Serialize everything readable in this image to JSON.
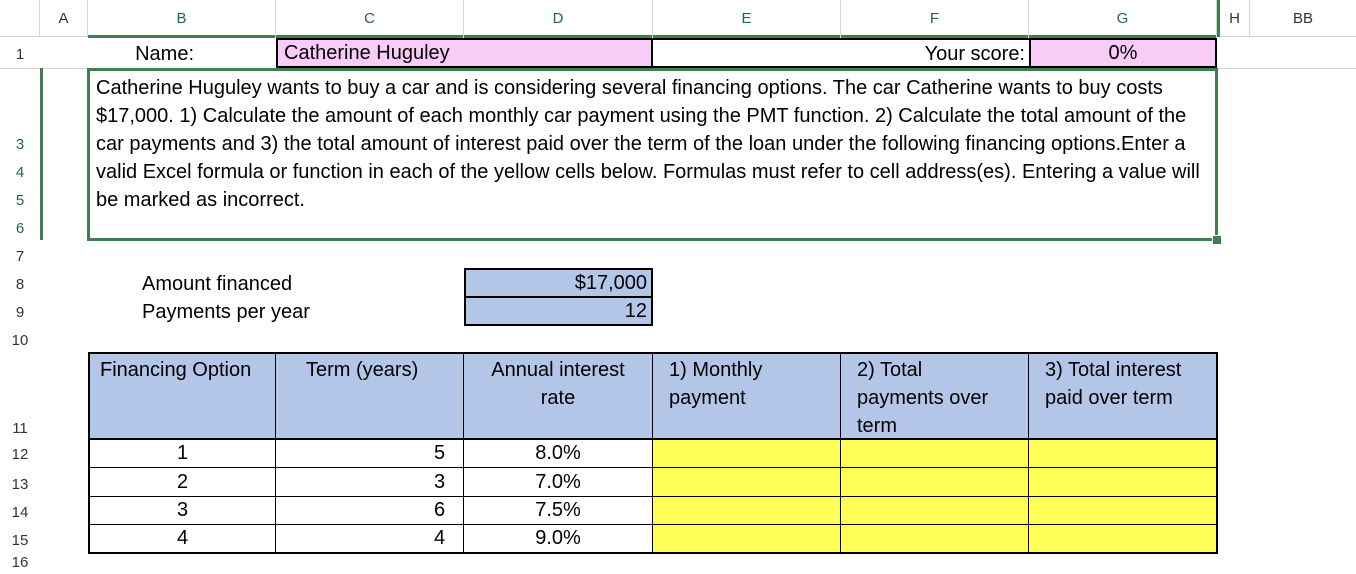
{
  "columns": [
    "A",
    "B",
    "C",
    "D",
    "E",
    "F",
    "G",
    "H",
    "BB"
  ],
  "rows": {
    "r1": "1",
    "r3": "3",
    "r4": "4",
    "r5": "5",
    "r6": "6",
    "r7": "7",
    "r8": "8",
    "r9": "9",
    "r10": "10",
    "r11": "11",
    "r12": "12",
    "r13": "13",
    "r14": "14",
    "r15": "15",
    "r16": "16"
  },
  "sheet": {
    "name_label": "Name:",
    "name_value": "Catherine Huguley",
    "score_label": "Your score:",
    "score_value": "0%",
    "instructions": "Catherine Huguley wants to buy a car and is considering several financing options.  The car Catherine wants to buy costs $17,000.  1)  Calculate the amount of each monthly car payment using the PMT function.  2)  Calculate the total amount of the car payments and 3) the total amount of interest paid over the term of the loan under the following financing options.Enter a valid Excel formula or function in each of the yellow cells below.  Formulas must refer to cell address(es).  Entering a value will be marked as incorrect.",
    "amount_label": "Amount financed",
    "amount_value": "$17,000",
    "payments_label": "Payments per year",
    "payments_value": "12"
  },
  "table": {
    "headers": {
      "option": "Financing Option",
      "term": "Term (years)",
      "rate": "Annual interest rate",
      "monthly": "1)  Monthly payment",
      "total": "2)  Total payments over term",
      "interest": "3)  Total interest paid over term"
    },
    "rows": [
      {
        "option": "1",
        "term": "5",
        "rate": "8.0%"
      },
      {
        "option": "2",
        "term": "3",
        "rate": "7.0%"
      },
      {
        "option": "3",
        "term": "6",
        "rate": "7.5%"
      },
      {
        "option": "4",
        "term": "4",
        "rate": "9.0%"
      }
    ]
  },
  "colors": {
    "selection_green": "#3f7f4f",
    "input_pink": "#f9ccf7",
    "data_blue": "#b4c6e7",
    "answer_yellow": "#ffff55"
  }
}
